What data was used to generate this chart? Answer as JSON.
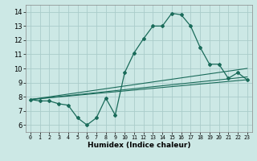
{
  "x": [
    0,
    1,
    2,
    3,
    4,
    5,
    6,
    7,
    8,
    9,
    10,
    11,
    12,
    13,
    14,
    15,
    16,
    17,
    18,
    19,
    20,
    21,
    22,
    23
  ],
  "main_line": [
    7.8,
    7.7,
    7.7,
    7.5,
    7.4,
    6.5,
    6.0,
    6.5,
    7.9,
    6.7,
    9.7,
    11.1,
    12.1,
    13.0,
    13.0,
    13.9,
    13.8,
    13.0,
    11.5,
    10.3,
    10.3,
    9.3,
    9.7,
    9.2
  ],
  "trend_lines": [
    [
      7.8,
      9.2
    ],
    [
      7.8,
      10.0
    ],
    [
      7.8,
      9.4
    ]
  ],
  "bg_color": "#cce8e5",
  "grid_color": "#aaccca",
  "line_color": "#1a6b5a",
  "xlabel": "Humidex (Indice chaleur)",
  "ylim": [
    5.5,
    14.5
  ],
  "xlim": [
    -0.5,
    23.5
  ],
  "yticks": [
    6,
    7,
    8,
    9,
    10,
    11,
    12,
    13,
    14
  ],
  "xticks": [
    0,
    1,
    2,
    3,
    4,
    5,
    6,
    7,
    8,
    9,
    10,
    11,
    12,
    13,
    14,
    15,
    16,
    17,
    18,
    19,
    20,
    21,
    22,
    23
  ]
}
